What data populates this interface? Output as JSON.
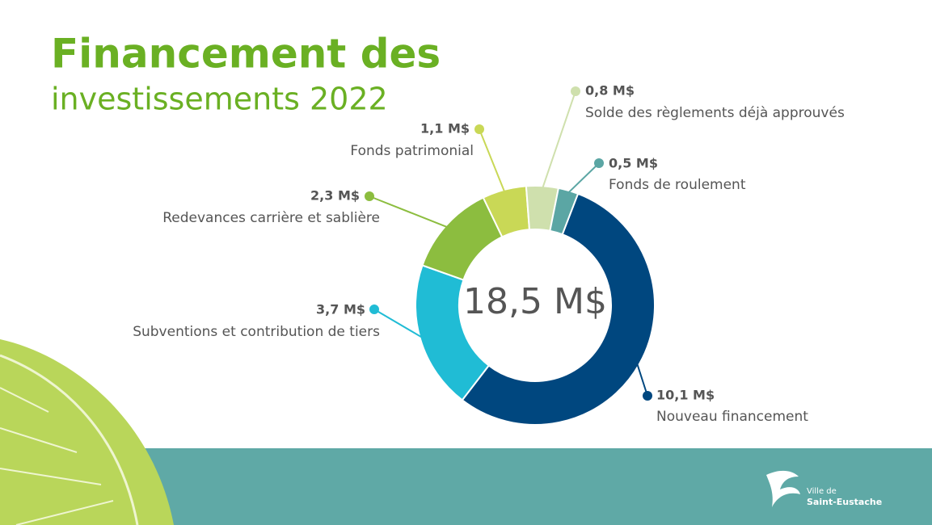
{
  "title": "Financement des",
  "subtitle": "investissements 2022",
  "chart_data": {
    "type": "donut",
    "center_label": "18,5 M$",
    "categories": [
      "Nouveau financement",
      "Subventions et contribution de tiers",
      "Redevances carrière et sablière",
      "Fonds patrimonial",
      "Solde des règlements déjà approuvés",
      "Fonds de roulement"
    ],
    "values": [
      10.1,
      3.7,
      2.3,
      1.1,
      0.8,
      0.5
    ],
    "value_labels": [
      "10,1 M$",
      "3,7 M$",
      "2,3 M$",
      "1,1 M$",
      "0,8 M$",
      "0,5 M$"
    ],
    "colors": [
      "#00477f",
      "#20bcd5",
      "#8cbd3f",
      "#c9d856",
      "#cfe0ad",
      "#5ba6a4"
    ]
  },
  "logo": {
    "line1": "Ville de",
    "line2": "Saint-Eustache"
  }
}
